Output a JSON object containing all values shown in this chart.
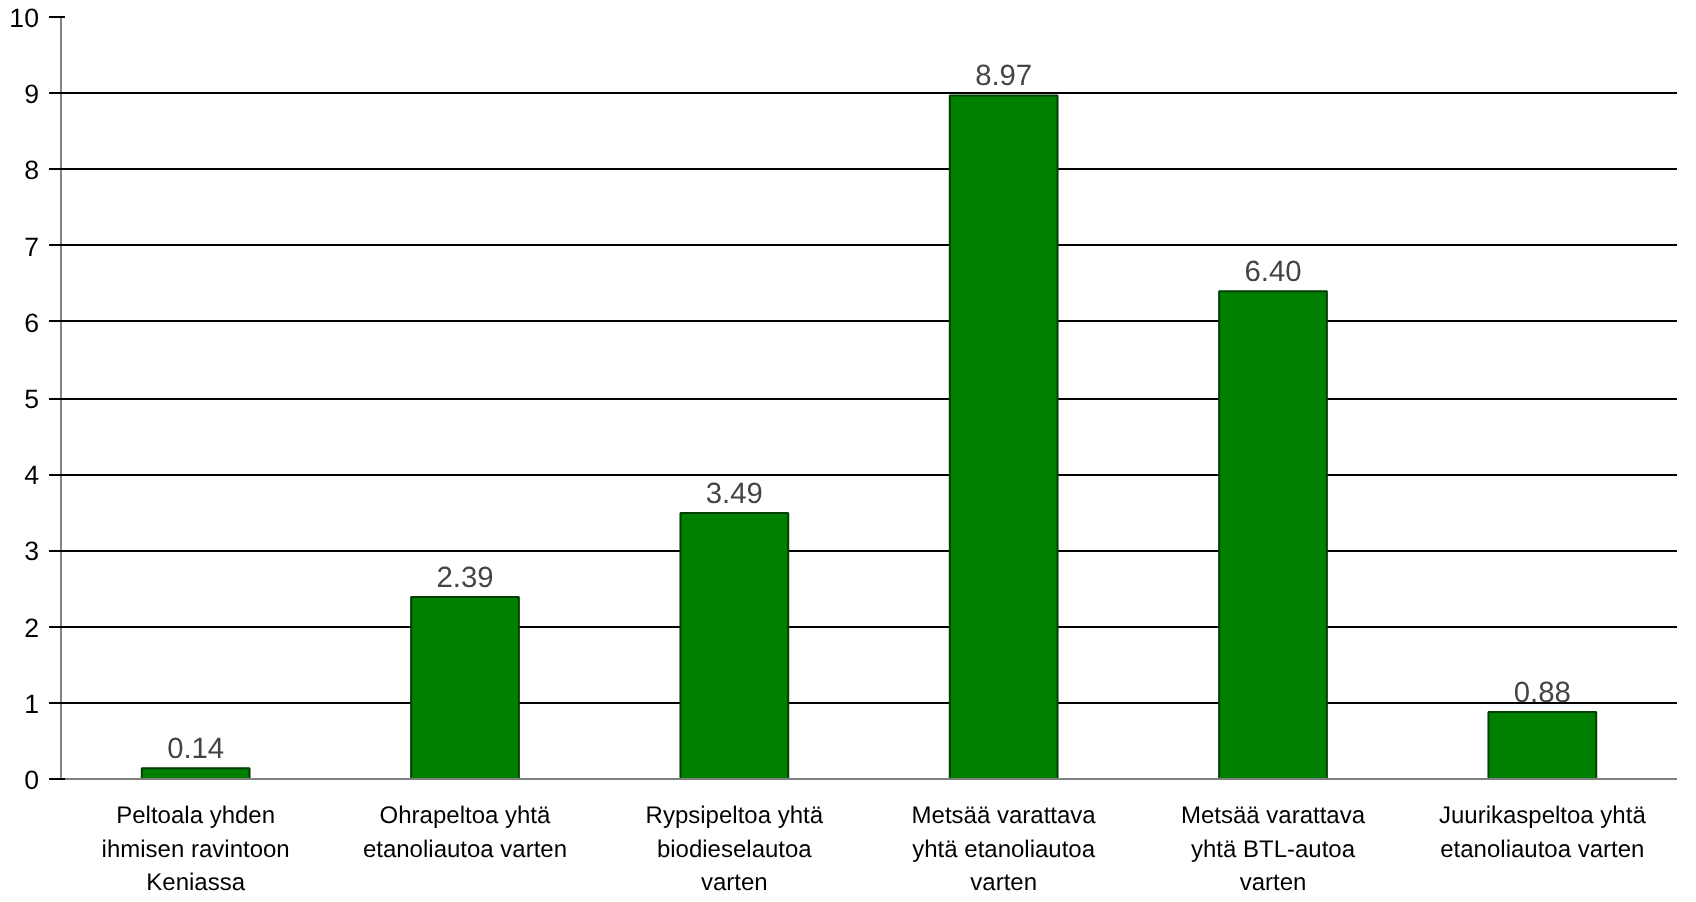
{
  "chart_data": {
    "type": "bar",
    "categories": [
      "Peltoala yhden ihmisen ravintoon Keniassa",
      "Ohrapeltoa yhtä etanoliautoa varten",
      "Rypsipeltoa yhtä biodieselautoa varten",
      "Metsää varattava yhtä etanoliautoa varten",
      "Metsää varattava yhtä BTL-autoa varten",
      "Juurikaspeltoa yhtä etanoliautoa varten"
    ],
    "values": [
      0.14,
      2.39,
      3.49,
      8.97,
      6.4,
      0.88
    ],
    "value_labels": [
      "0.14",
      "2.39",
      "3.49",
      "8.97",
      "6.40",
      "0.88"
    ],
    "color": "#008000",
    "ylim": [
      0,
      10
    ],
    "yticks": [
      0,
      1,
      2,
      3,
      4,
      5,
      6,
      7,
      8,
      9,
      10
    ],
    "grid": "y"
  }
}
